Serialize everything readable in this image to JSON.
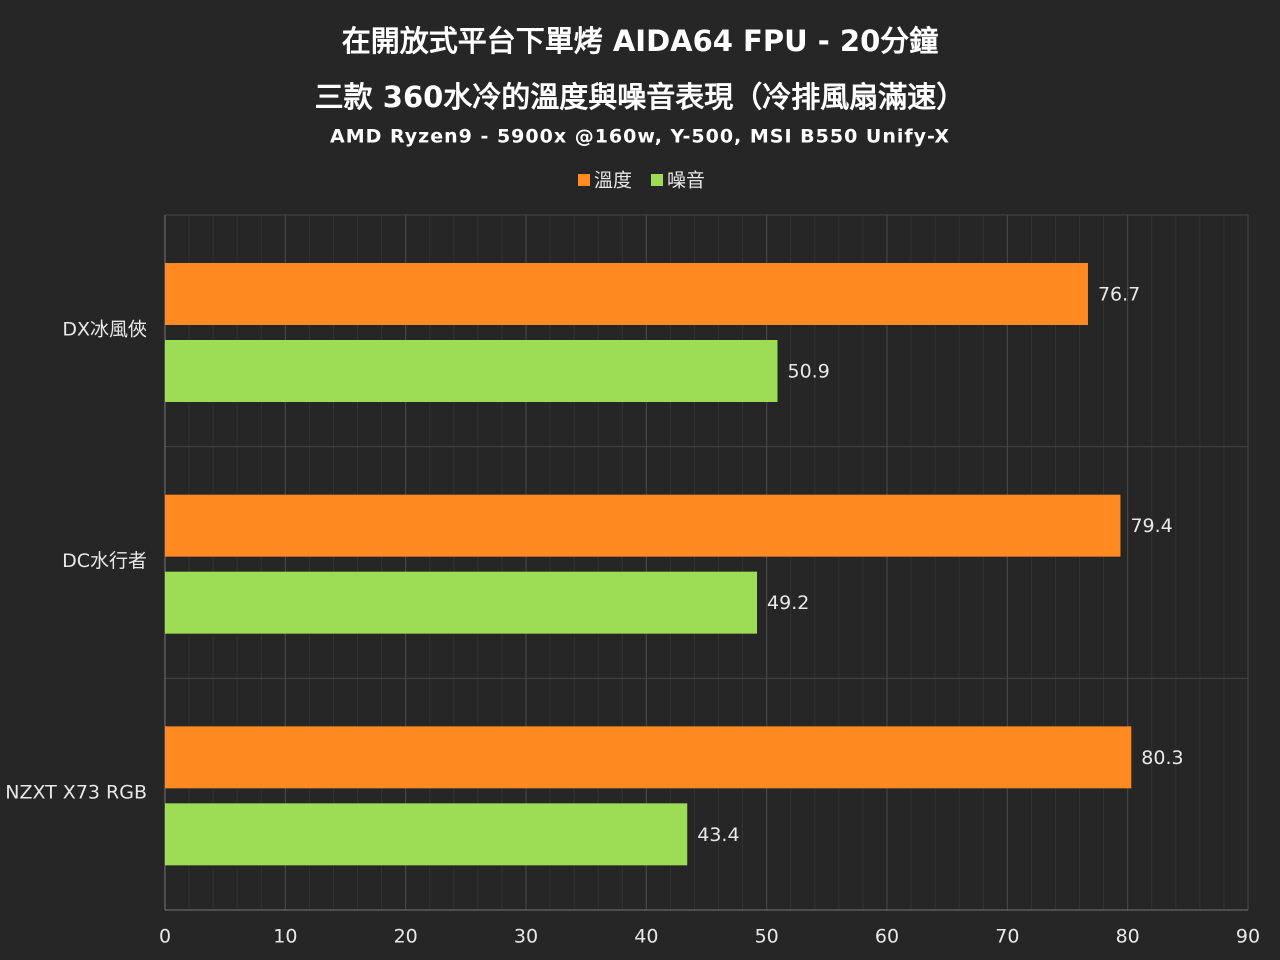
{
  "chart_data": {
    "type": "bar",
    "orientation": "horizontal",
    "title": "在開放式平台下單烤 AIDA64 FPU - 20分鐘",
    "subtitle": "三款 360水冷的溫度與噪音表現（冷排風扇滿速）",
    "caption": "AMD Ryzen9 - 5900x @160w, Y-500, MSI B550 Unify-X",
    "categories": [
      "DX冰風俠",
      "DC水行者",
      "NZXT X73 RGB"
    ],
    "series": [
      {
        "name": "溫度",
        "color": "#ff8a22",
        "values": [
          76.7,
          79.4,
          80.3
        ]
      },
      {
        "name": "噪音",
        "color": "#9ddc55",
        "values": [
          50.9,
          49.2,
          43.4
        ]
      }
    ],
    "xlim": [
      0,
      90
    ],
    "xticks": [
      0,
      10,
      20,
      30,
      40,
      50,
      60,
      70,
      80,
      90
    ],
    "grid": true,
    "legend": "top"
  }
}
